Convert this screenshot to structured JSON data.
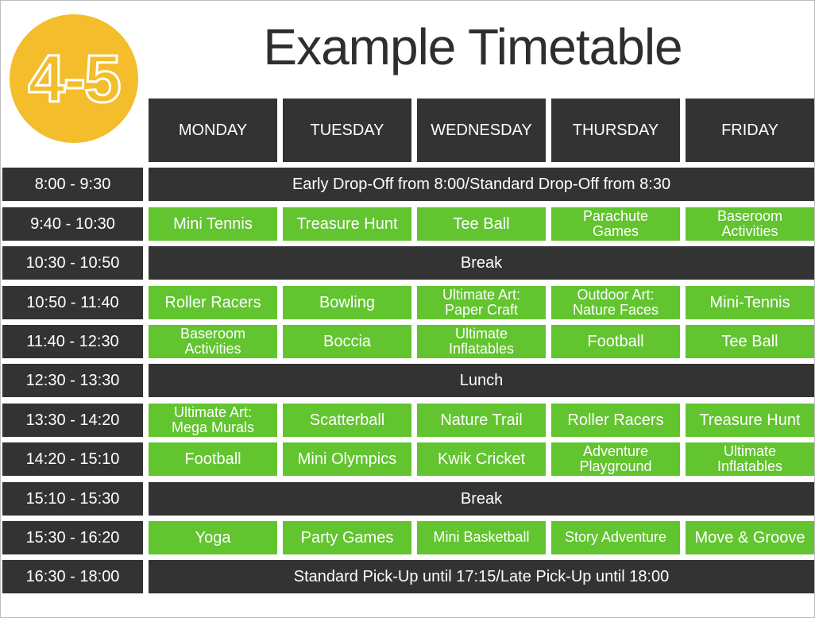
{
  "badge": "4-5",
  "title": "Example Timetable",
  "colors": {
    "dark": "#333333",
    "activity": "#62c42f",
    "badge": "#f3bd2c"
  },
  "days": [
    "MONDAY",
    "TUESDAY",
    "WEDNESDAY",
    "THURSDAY",
    "FRIDAY"
  ],
  "rows": [
    {
      "time": "8:00 - 9:30",
      "span": "Early Drop-Off from 8:00/Standard Drop-Off from 8:30"
    },
    {
      "time": "9:40 - 10:30",
      "activities": [
        "Mini Tennis",
        "Treasure Hunt",
        "Tee Ball",
        "Parachute Games",
        "Baseroom Activities"
      ]
    },
    {
      "time": "10:30 - 10:50",
      "span": "Break"
    },
    {
      "time": "10:50 - 11:40",
      "activities": [
        "Roller Racers",
        "Bowling",
        "Ultimate Art: Paper Craft",
        "Outdoor Art: Nature Faces",
        "Mini-Tennis"
      ]
    },
    {
      "time": "11:40 - 12:30",
      "activities": [
        "Baseroom Activities",
        "Boccia",
        "Ultimate Inflatables",
        "Football",
        "Tee Ball"
      ]
    },
    {
      "time": "12:30 - 13:30",
      "span": "Lunch"
    },
    {
      "time": "13:30 - 14:20",
      "activities": [
        "Ultimate Art: Mega Murals",
        "Scatterball",
        "Nature Trail",
        "Roller Racers",
        "Treasure Hunt"
      ]
    },
    {
      "time": "14:20 - 15:10",
      "activities": [
        "Football",
        "Mini Olympics",
        "Kwik Cricket",
        "Adventure Playground",
        "Ultimate Inflatables"
      ]
    },
    {
      "time": "15:10 - 15:30",
      "span": "Break"
    },
    {
      "time": "15:30 - 16:20",
      "activities": [
        "Yoga",
        "Party Games",
        "Mini Basketball",
        "Story Adventure",
        "Move & Groove"
      ]
    },
    {
      "time": "16:30 - 18:00",
      "span": "Standard Pick-Up until 17:15/Late Pick-Up until 18:00"
    }
  ]
}
